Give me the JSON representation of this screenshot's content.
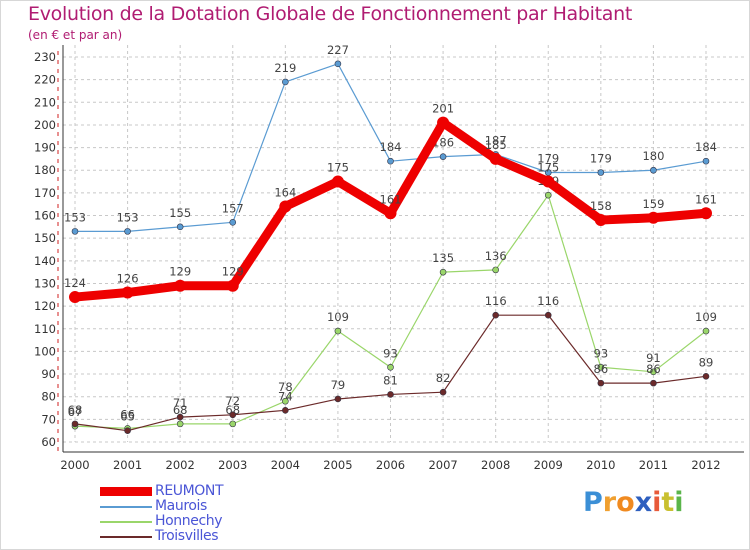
{
  "chart_data": {
    "type": "line",
    "title": "Evolution de la Dotation Globale de Fonctionnement par Habitant",
    "subtitle": "(en € et par an)",
    "xlabel": "",
    "ylabel": "",
    "categories": [
      "2000",
      "2001",
      "2002",
      "2003",
      "2004",
      "2005",
      "2006",
      "2007",
      "2008",
      "2009",
      "2010",
      "2011",
      "2012"
    ],
    "ylim": [
      60,
      230
    ],
    "yticks": [
      60,
      70,
      80,
      90,
      100,
      110,
      120,
      130,
      140,
      150,
      160,
      170,
      180,
      190,
      200,
      210,
      220,
      230
    ],
    "grid": true,
    "legend_position": "bottom-left",
    "series": [
      {
        "name": "Maurois",
        "color": "#5a9bd2",
        "width": 1.2,
        "values": [
          153,
          153,
          155,
          157,
          219,
          227,
          184,
          186,
          187,
          179,
          179,
          180,
          184
        ]
      },
      {
        "name": "Honnechy",
        "color": "#9ad66a",
        "width": 1.2,
        "values": [
          67,
          66,
          68,
          68,
          78,
          109,
          93,
          135,
          136,
          169,
          93,
          91,
          109
        ]
      },
      {
        "name": "Troisvilles",
        "color": "#6b2a2a",
        "width": 1.2,
        "values": [
          68,
          65,
          71,
          72,
          74,
          79,
          81,
          82,
          116,
          116,
          86,
          86,
          89
        ]
      },
      {
        "name": "REUMONT",
        "color": "#ee0000",
        "width": 9,
        "values": [
          124,
          126,
          129,
          129,
          164,
          175,
          161,
          201,
          185,
          175,
          158,
          159,
          161
        ]
      }
    ],
    "legend_order": [
      "REUMONT",
      "Maurois",
      "Honnechy",
      "Troisvilles"
    ]
  },
  "logo": {
    "letters": [
      "P",
      "r",
      "o",
      "x",
      "i",
      "t",
      "i"
    ],
    "colors": [
      "#3b8fd6",
      "#f0a030",
      "#f08a20",
      "#2e5fbf",
      "#e85a3a",
      "#c9c030",
      "#5ab54a"
    ]
  }
}
